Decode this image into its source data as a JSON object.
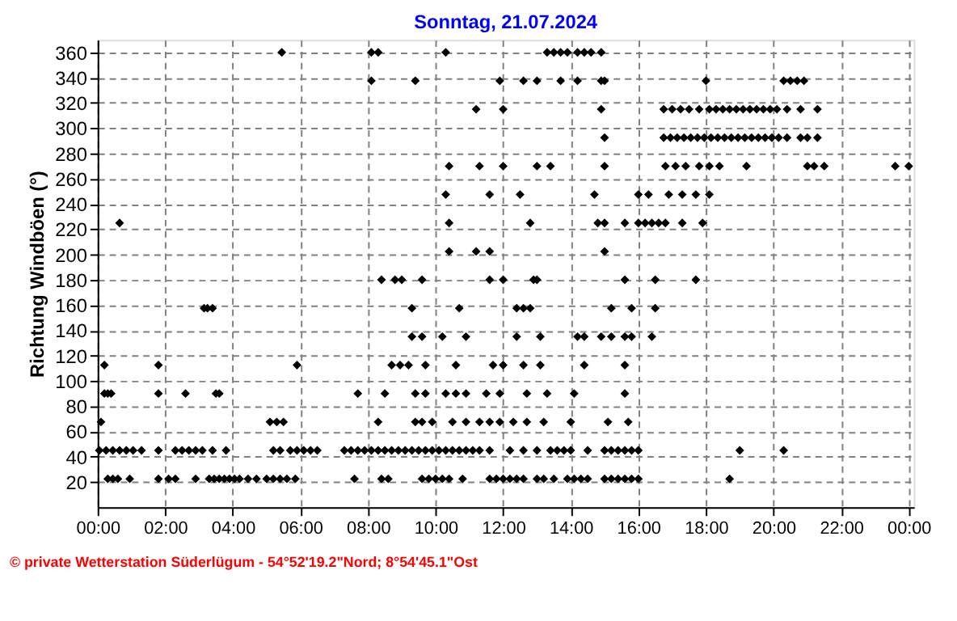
{
  "chart_data": {
    "type": "scatter",
    "title": "Sonntag, 21.07.2024",
    "ylabel": "Richtung Windböen  (°)",
    "annotations": [
      "© private Wetterstation Süderlügum - 54°52'19.2\"Nord; 8°54'45.1\"Ost"
    ],
    "marker": "diamond",
    "grid": true,
    "xlim": [
      0,
      24.15
    ],
    "ylim": [
      0,
      370
    ],
    "xticks": [
      {
        "value": 0,
        "label": "00:00"
      },
      {
        "value": 2,
        "label": "02:00"
      },
      {
        "value": 4,
        "label": "04:00"
      },
      {
        "value": 6,
        "label": "06:00"
      },
      {
        "value": 8,
        "label": "08:00"
      },
      {
        "value": 10,
        "label": "10:00"
      },
      {
        "value": 12,
        "label": "12:00"
      },
      {
        "value": 14,
        "label": "14:00"
      },
      {
        "value": 16,
        "label": "16:00"
      },
      {
        "value": 18,
        "label": "18:00"
      },
      {
        "value": 20,
        "label": "20:00"
      },
      {
        "value": 22,
        "label": "22:00"
      },
      {
        "value": 24,
        "label": "00:00"
      }
    ],
    "yticks": [
      20,
      40,
      60,
      80,
      100,
      120,
      140,
      160,
      180,
      200,
      220,
      240,
      260,
      280,
      300,
      320,
      340,
      360
    ],
    "series": [
      {
        "color": "#000000",
        "x": [
          0.3,
          0.45,
          0.6,
          0.95,
          1.8,
          2.1,
          2.3,
          2.9,
          3.3,
          3.45,
          3.6,
          3.75,
          3.9,
          4.05,
          4.2,
          4.45,
          4.7,
          5.0,
          5.2,
          5.4,
          5.6,
          5.85,
          7.6,
          8.4,
          8.6,
          9.6,
          9.8,
          10.0,
          10.2,
          10.4,
          10.8,
          11.6,
          11.8,
          12.0,
          12.2,
          12.4,
          12.6,
          13.0,
          13.2,
          13.5,
          13.9,
          14.1,
          14.3,
          14.5,
          15.0,
          15.2,
          15.4,
          15.6,
          15.8,
          16.0,
          18.7,
          0.05,
          0.25,
          0.45,
          0.65,
          0.85,
          1.05,
          1.3,
          1.8,
          2.3,
          2.5,
          2.7,
          2.9,
          3.1,
          3.4,
          3.8,
          5.2,
          5.4,
          5.7,
          5.9,
          6.1,
          6.3,
          6.5,
          7.3,
          7.5,
          7.7,
          7.9,
          8.1,
          8.3,
          8.5,
          8.7,
          8.9,
          9.1,
          9.3,
          9.5,
          9.7,
          9.9,
          10.1,
          10.3,
          10.5,
          10.7,
          10.9,
          11.1,
          11.3,
          11.6,
          12.2,
          12.6,
          13.0,
          13.4,
          13.6,
          13.8,
          14.0,
          14.5,
          15.0,
          15.2,
          15.4,
          15.6,
          15.8,
          16.0,
          19.0,
          20.3,
          0.1,
          5.1,
          5.3,
          5.5,
          8.3,
          9.4,
          9.6,
          9.9,
          10.5,
          10.9,
          11.3,
          11.6,
          11.9,
          12.3,
          12.7,
          13.2,
          14.0,
          15.1,
          15.7,
          0.2,
          0.3,
          0.4,
          1.8,
          2.6,
          3.5,
          3.6,
          7.7,
          8.5,
          9.4,
          9.7,
          10.3,
          10.6,
          10.9,
          11.5,
          11.9,
          12.7,
          13.3,
          14.1,
          15.6,
          0.2,
          1.8,
          5.9,
          8.7,
          8.95,
          9.2,
          9.7,
          10.6,
          11.7,
          12.0,
          12.6,
          13.1,
          14.4,
          15.6,
          9.3,
          9.6,
          10.2,
          10.9,
          12.4,
          13.1,
          14.2,
          14.4,
          14.9,
          15.2,
          15.6,
          15.8,
          16.4,
          3.15,
          3.25,
          3.4,
          9.3,
          10.7,
          12.4,
          12.6,
          12.8,
          15.2,
          15.8,
          16.5,
          8.4,
          8.8,
          9.0,
          9.6,
          11.6,
          12.0,
          12.9,
          13.0,
          15.6,
          16.5,
          17.7,
          10.4,
          11.2,
          11.6,
          15.0,
          0.65,
          10.4,
          12.8,
          14.8,
          15.0,
          15.6,
          16.0,
          16.2,
          16.4,
          16.6,
          16.8,
          17.3,
          17.9,
          10.3,
          11.6,
          12.5,
          14.7,
          16.0,
          16.3,
          16.9,
          17.3,
          17.7,
          18.1,
          10.4,
          11.3,
          12.0,
          13.0,
          13.4,
          15.0,
          16.8,
          17.1,
          17.4,
          17.8,
          18.1,
          18.4,
          19.2,
          21.0,
          21.2,
          21.5,
          23.6,
          24.0,
          15.0,
          16.75,
          16.95,
          17.15,
          17.35,
          17.55,
          17.75,
          17.95,
          18.15,
          18.35,
          18.55,
          18.75,
          18.95,
          19.15,
          19.35,
          19.55,
          19.75,
          19.95,
          20.15,
          20.4,
          20.8,
          21.0,
          21.3,
          11.2,
          12.0,
          14.9,
          16.75,
          17.0,
          17.25,
          17.5,
          17.8,
          18.1,
          18.3,
          18.5,
          18.7,
          18.9,
          19.1,
          19.3,
          19.5,
          19.7,
          19.9,
          20.1,
          20.4,
          20.8,
          21.3,
          8.1,
          9.4,
          11.9,
          12.6,
          13.0,
          13.7,
          14.2,
          14.9,
          15.0,
          18.0,
          20.3,
          20.5,
          20.7,
          20.9,
          5.45,
          8.1,
          8.3,
          10.3,
          13.3,
          13.5,
          13.7,
          13.9,
          14.2,
          14.4,
          14.6,
          14.9
        ],
        "values": [
          22.5,
          22.5,
          22.5,
          22.5,
          22.5,
          22.5,
          22.5,
          22.5,
          22.5,
          22.5,
          22.5,
          22.5,
          22.5,
          22.5,
          22.5,
          22.5,
          22.5,
          22.5,
          22.5,
          22.5,
          22.5,
          22.5,
          22.5,
          22.5,
          22.5,
          22.5,
          22.5,
          22.5,
          22.5,
          22.5,
          22.5,
          22.5,
          22.5,
          22.5,
          22.5,
          22.5,
          22.5,
          22.5,
          22.5,
          22.5,
          22.5,
          22.5,
          22.5,
          22.5,
          22.5,
          22.5,
          22.5,
          22.5,
          22.5,
          22.5,
          22.5,
          45,
          45,
          45,
          45,
          45,
          45,
          45,
          45,
          45,
          45,
          45,
          45,
          45,
          45,
          45,
          45,
          45,
          45,
          45,
          45,
          45,
          45,
          45,
          45,
          45,
          45,
          45,
          45,
          45,
          45,
          45,
          45,
          45,
          45,
          45,
          45,
          45,
          45,
          45,
          45,
          45,
          45,
          45,
          45,
          45,
          45,
          45,
          45,
          45,
          45,
          45,
          45,
          45,
          45,
          45,
          45,
          45,
          45,
          45,
          45,
          67.5,
          67.5,
          67.5,
          67.5,
          67.5,
          67.5,
          67.5,
          67.5,
          67.5,
          67.5,
          67.5,
          67.5,
          67.5,
          67.5,
          67.5,
          67.5,
          67.5,
          67.5,
          67.5,
          90,
          90,
          90,
          90,
          90,
          90,
          90,
          90,
          90,
          90,
          90,
          90,
          90,
          90,
          90,
          90,
          90,
          90,
          90,
          90,
          112.5,
          112.5,
          112.5,
          112.5,
          112.5,
          112.5,
          112.5,
          112.5,
          112.5,
          112.5,
          112.5,
          112.5,
          112.5,
          112.5,
          135,
          135,
          135,
          135,
          135,
          135,
          135,
          135,
          135,
          135,
          135,
          135,
          135,
          157.5,
          157.5,
          157.5,
          157.5,
          157.5,
          157.5,
          157.5,
          157.5,
          157.5,
          157.5,
          157.5,
          180,
          180,
          180,
          180,
          180,
          180,
          180,
          180,
          180,
          180,
          180,
          202.5,
          202.5,
          202.5,
          202.5,
          225,
          225,
          225,
          225,
          225,
          225,
          225,
          225,
          225,
          225,
          225,
          225,
          225,
          247.5,
          247.5,
          247.5,
          247.5,
          247.5,
          247.5,
          247.5,
          247.5,
          247.5,
          247.5,
          270,
          270,
          270,
          270,
          270,
          270,
          270,
          270,
          270,
          270,
          270,
          270,
          270,
          270,
          270,
          270,
          270,
          270,
          292.5,
          292.5,
          292.5,
          292.5,
          292.5,
          292.5,
          292.5,
          292.5,
          292.5,
          292.5,
          292.5,
          292.5,
          292.5,
          292.5,
          292.5,
          292.5,
          292.5,
          292.5,
          292.5,
          292.5,
          292.5,
          292.5,
          292.5,
          315,
          315,
          315,
          315,
          315,
          315,
          315,
          315,
          315,
          315,
          315,
          315,
          315,
          315,
          315,
          315,
          315,
          315,
          315,
          315,
          315,
          315,
          337.5,
          337.5,
          337.5,
          337.5,
          337.5,
          337.5,
          337.5,
          337.5,
          337.5,
          337.5,
          337.5,
          337.5,
          337.5,
          337.5,
          360,
          360,
          360,
          360,
          360,
          360,
          360,
          360,
          360,
          360,
          360,
          360
        ]
      }
    ]
  }
}
